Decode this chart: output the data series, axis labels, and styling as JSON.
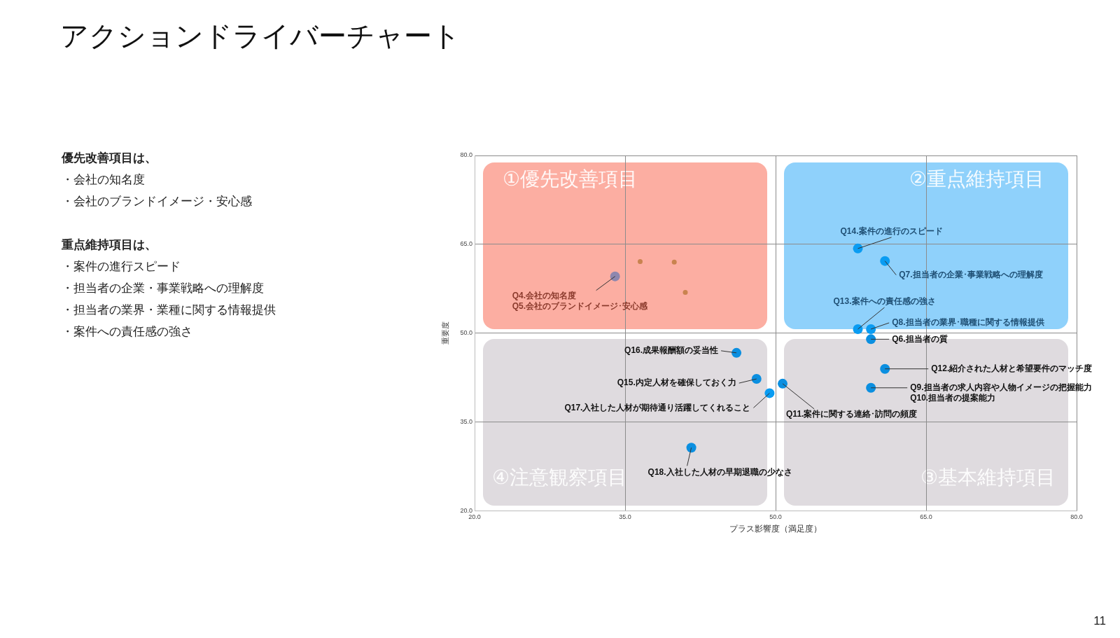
{
  "chart_data": {
    "type": "scatter",
    "title": "アクションドライバーチャート",
    "xlabel": "プラス影響度（満足度）",
    "ylabel": "重要度",
    "xlim": [
      20,
      80
    ],
    "ylim": [
      20,
      80
    ],
    "xticks": [
      {
        "value": 20,
        "label": "20.0"
      },
      {
        "value": 35,
        "label": "35.0"
      },
      {
        "value": 50,
        "label": "50.0"
      },
      {
        "value": 65,
        "label": "65.0"
      },
      {
        "value": 80,
        "label": "80.0"
      }
    ],
    "yticks": [
      {
        "value": 20,
        "label": "20.0"
      },
      {
        "value": 35,
        "label": "35.0"
      },
      {
        "value": 50,
        "label": "50.0"
      },
      {
        "value": 65,
        "label": "65.0"
      },
      {
        "value": 80,
        "label": "80.0"
      }
    ],
    "grid": true,
    "legend": false,
    "marker": "circle",
    "series": [
      {
        "color": "#0b8fe0",
        "colors": [
          "#8e87ae",
          "#0a9cf2",
          "#0a9cf2",
          "#0a9cf2",
          "#0a9cf2",
          "#0b8fe0",
          "#0b8fe0",
          "#0b8fe0",
          "#0b8fe0",
          "#0a9cf2",
          "#0b8fe0",
          "#0b8fe0",
          "#0b8fe0"
        ],
        "x": [
          34.0,
          58.2,
          60.9,
          58.2,
          59.5,
          59.5,
          60.9,
          59.5,
          50.7,
          49.4,
          46.1,
          48.1,
          41.6
        ],
        "values": [
          59.6,
          64.3,
          62.2,
          50.7,
          50.7,
          49.0,
          44.0,
          40.8,
          41.5,
          39.9,
          46.7,
          42.3,
          30.7
        ]
      },
      {
        "color": "#c9834f",
        "x": [
          36.5,
          39.9,
          41.0
        ],
        "values": [
          62.1,
          62.0,
          56.9
        ]
      }
    ],
    "annotations": [
      "①優先改善項目",
      "②重点維持項目",
      "③基本維持項目",
      "④注意観察項目",
      "優先改善項目は、",
      "・会社の知名度",
      "・会社のブランドイメージ・安心感",
      "重点維持項目は、",
      "・案件の進行スピード",
      "・担当者の企業・事業戦略への理解度",
      "・担当者の業界・業種に関する情報提供",
      "・案件への責任感の強さ",
      "11",
      {
        "text": "Q4.会社の知名度\nQ5.会社のブランドイメージ･安心感",
        "x": 34.0,
        "y": 59.6
      },
      {
        "text": "Q14.案件の進行のスピード",
        "x": 58.2,
        "y": 64.3
      },
      {
        "text": "Q7.担当者の企業･事業戦略への理解度",
        "x": 60.9,
        "y": 62.2
      },
      {
        "text": "Q13.案件への責任感の強さ",
        "x": 58.2,
        "y": 50.7
      },
      {
        "text": "Q8.担当者の業界･職種に関する情報提供",
        "x": 59.5,
        "y": 50.7
      },
      {
        "text": "Q6.担当者の質",
        "x": 59.5,
        "y": 49.0
      },
      {
        "text": "Q12.紹介された人材と希望要件のマッチ度",
        "x": 60.9,
        "y": 44.0
      },
      {
        "text": "Q9.担当者の求人内容や人物イメージの把握能力\nQ10.担当者の提案能力",
        "x": 59.5,
        "y": 40.8
      },
      {
        "text": "Q11.案件に関する連絡･訪問の頻度",
        "x": 50.7,
        "y": 41.5
      },
      {
        "text": "Q17.入社した人材が期待通り活躍してくれること",
        "x": 49.4,
        "y": 39.9
      },
      {
        "text": "Q16.成果報酬額の妥当性",
        "x": 46.1,
        "y": 46.7
      },
      {
        "text": "Q15.内定人材を確保しておく力",
        "x": 48.1,
        "y": 42.3
      },
      {
        "text": "Q18.入社した人材の早期退職の少なさ",
        "x": 41.6,
        "y": 30.7
      }
    ]
  }
}
